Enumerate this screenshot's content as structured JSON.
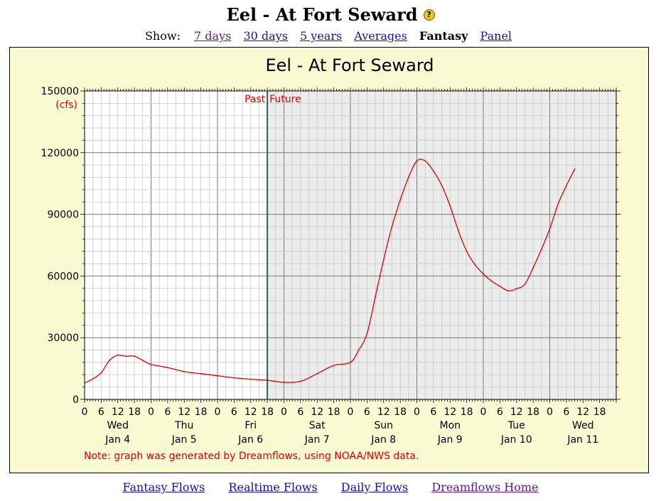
{
  "page": {
    "title": "Eel - At Fort Seward",
    "help_icon": "?"
  },
  "nav": {
    "show_label": "Show:",
    "links": [
      {
        "label": "7 days",
        "visited": true
      },
      {
        "label": "30 days",
        "visited": false
      },
      {
        "label": "5 years",
        "visited": false
      },
      {
        "label": "Averages",
        "visited": false
      },
      {
        "label": "Fantasy",
        "current": true
      },
      {
        "label": "Panel",
        "visited": false
      }
    ]
  },
  "footer": {
    "links": [
      {
        "label": "Fantasy Flows",
        "visited": false
      },
      {
        "label": "Realtime Flows",
        "visited": false
      },
      {
        "label": "Daily Flows",
        "visited": false
      },
      {
        "label": "Dreamflows Home",
        "visited": true
      }
    ]
  },
  "chart_data": {
    "type": "line",
    "title": "Eel - At Fort Seward",
    "y_unit": "(cfs)",
    "ylim": [
      0,
      150000
    ],
    "y_ticks": [
      0,
      30000,
      60000,
      90000,
      120000,
      150000
    ],
    "x_range": [
      "Jan 4 00:00",
      "Jan 11 18:00"
    ],
    "x_hour_labels": [
      "0",
      "6",
      "12",
      "18"
    ],
    "day_labels": [
      {
        "dow": "Wed",
        "date": "Jan 4"
      },
      {
        "dow": "Thu",
        "date": "Jan 5"
      },
      {
        "dow": "Fri",
        "date": "Jan 6"
      },
      {
        "dow": "Sat",
        "date": "Jan 7"
      },
      {
        "dow": "Sun",
        "date": "Jan 8"
      },
      {
        "dow": "Mon",
        "date": "Jan 9"
      },
      {
        "dow": "Tue",
        "date": "Jan 10"
      },
      {
        "dow": "Wed",
        "date": "Jan 11"
      }
    ],
    "divider": {
      "time": "Jan 6 18:00",
      "left_label": "Past",
      "right_label": "Future"
    },
    "note": "Note: graph was generated by Dreamflows, using NOAA/NWS data.",
    "grid": true,
    "colors": {
      "series": "#dd0000",
      "panel": "#fafad2",
      "future_bg": "#ececec",
      "divider": "#2f5f5f",
      "note": "#dd0000"
    },
    "series": [
      {
        "points": [
          [
            "Jan 4 00:00",
            8000
          ],
          [
            "Jan 4 03:00",
            10000
          ],
          [
            "Jan 4 06:00",
            13000
          ],
          [
            "Jan 4 09:00",
            19000
          ],
          [
            "Jan 4 12:00",
            21500
          ],
          [
            "Jan 4 15:00",
            21000
          ],
          [
            "Jan 4 18:00",
            21000
          ],
          [
            "Jan 4 21:00",
            19000
          ],
          [
            "Jan 5 00:00",
            17000
          ],
          [
            "Jan 5 06:00",
            15500
          ],
          [
            "Jan 5 12:00",
            13500
          ],
          [
            "Jan 5 18:00",
            12500
          ],
          [
            "Jan 6 00:00",
            11500
          ],
          [
            "Jan 6 06:00",
            10500
          ],
          [
            "Jan 6 12:00",
            9800
          ],
          [
            "Jan 6 18:00",
            9300
          ],
          [
            "Jan 7 00:00",
            8300
          ],
          [
            "Jan 7 06:00",
            8800
          ],
          [
            "Jan 7 12:00",
            12500
          ],
          [
            "Jan 7 18:00",
            16500
          ],
          [
            "Jan 8 00:00",
            18000
          ],
          [
            "Jan 8 03:00",
            24000
          ],
          [
            "Jan 8 06:00",
            32000
          ],
          [
            "Jan 8 09:00",
            50000
          ],
          [
            "Jan 8 12:00",
            68000
          ],
          [
            "Jan 8 15:00",
            84000
          ],
          [
            "Jan 8 18:00",
            97000
          ],
          [
            "Jan 8 21:00",
            108000
          ],
          [
            "Jan 9 00:00",
            116000
          ],
          [
            "Jan 9 03:00",
            116000
          ],
          [
            "Jan 9 06:00",
            111000
          ],
          [
            "Jan 9 09:00",
            104000
          ],
          [
            "Jan 9 12:00",
            94000
          ],
          [
            "Jan 9 15:00",
            82000
          ],
          [
            "Jan 9 18:00",
            72000
          ],
          [
            "Jan 9 21:00",
            65500
          ],
          [
            "Jan 10 00:00",
            61000
          ],
          [
            "Jan 10 03:00",
            57500
          ],
          [
            "Jan 10 06:00",
            55000
          ],
          [
            "Jan 10 09:00",
            52800
          ],
          [
            "Jan 10 12:00",
            53800
          ],
          [
            "Jan 10 15:00",
            56000
          ],
          [
            "Jan 10 18:00",
            64000
          ],
          [
            "Jan 10 21:00",
            73000
          ],
          [
            "Jan 11 00:00",
            83000
          ],
          [
            "Jan 11 03:00",
            95000
          ],
          [
            "Jan 11 06:00",
            104000
          ],
          [
            "Jan 11 09:00",
            112000
          ]
        ]
      }
    ]
  }
}
